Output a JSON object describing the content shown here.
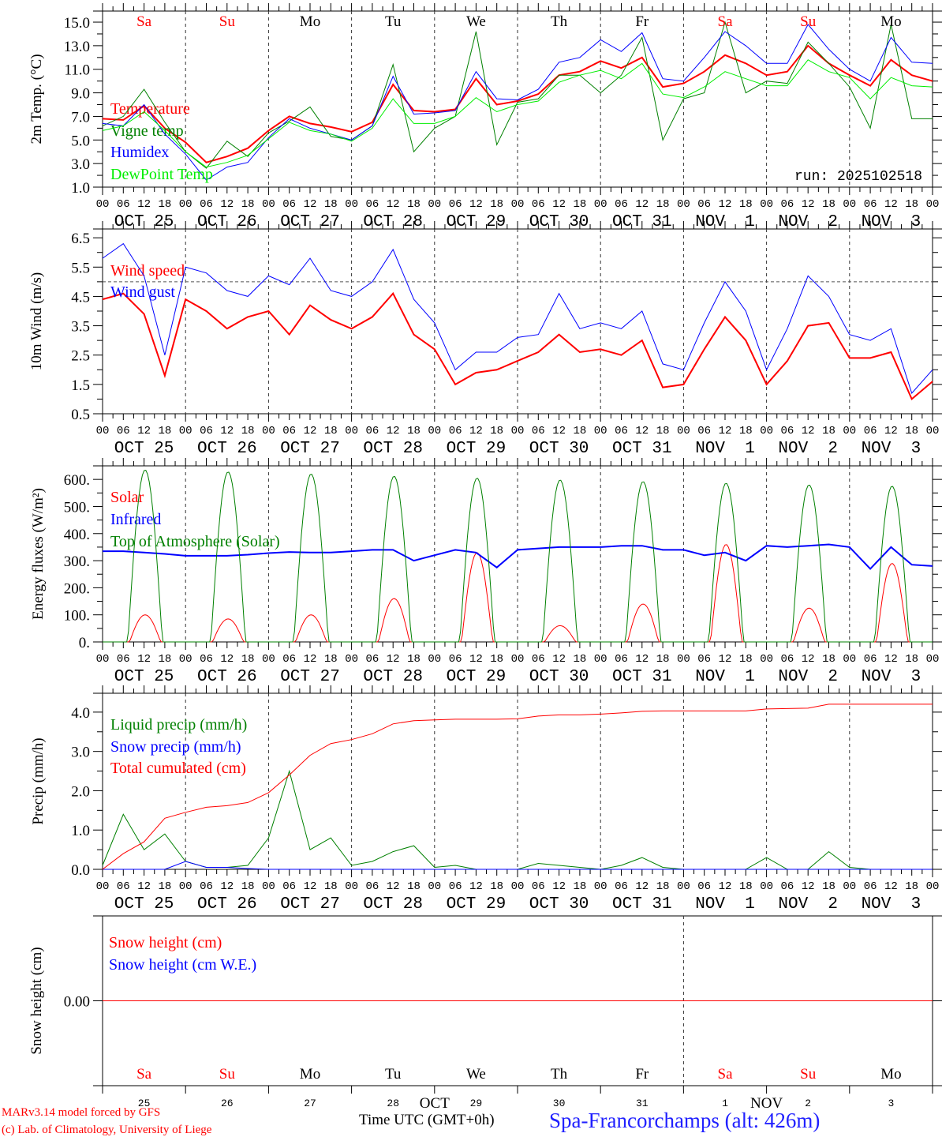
{
  "run_label": "run: 2025102518",
  "footer": {
    "model": "MARv3.14 model forced by GFS",
    "credit": "(c) Lab. of Climatology, University of Liege",
    "time_label": "Time UTC (GMT+0h)",
    "station": "Spa-Francorchamps (alt: 426m)",
    "month_oct": "OCT",
    "month_nov": "NOV"
  },
  "weekdays": [
    "Sa",
    "Su",
    "Mo",
    "Tu",
    "We",
    "Th",
    "Fr",
    "Sa",
    "Su",
    "Mo"
  ],
  "weekend_flags": [
    true,
    true,
    false,
    false,
    false,
    false,
    false,
    true,
    true,
    false
  ],
  "dates": [
    "OCT 25",
    "OCT 26",
    "OCT 27",
    "OCT 28",
    "OCT 29",
    "OCT 30",
    "OCT 31",
    "NOV  1",
    "NOV  2",
    "NOV  3"
  ],
  "day_numbers": [
    "25",
    "26",
    "27",
    "28",
    "29",
    "30",
    "31",
    "1",
    "2",
    "3"
  ],
  "hour_labels": [
    "00",
    "06",
    "12",
    "18"
  ],
  "colors": {
    "red": "#ff0000",
    "blue": "#0000ff",
    "green": "#008000",
    "lightgreen": "#00ee00",
    "weekend": "#ff0000",
    "station": "#2020ff"
  },
  "chart_data": [
    {
      "type": "line",
      "ylabel": "2m Temp. (°C)",
      "ylim": [
        1.0,
        15.94
      ],
      "yticks": [
        "1.0",
        "3.0",
        "5.0",
        "7.0",
        "9.0",
        "11.0",
        "13.0",
        "15.0"
      ],
      "x_step_hours": 6,
      "series": [
        {
          "name": "Temperature",
          "color": "#ff0000",
          "width": 2,
          "values": [
            6.8,
            6.7,
            7.9,
            6.0,
            4.8,
            3.1,
            3.6,
            4.3,
            5.8,
            7.0,
            6.4,
            6.1,
            5.7,
            6.5,
            9.7,
            7.5,
            7.4,
            7.6,
            10.2,
            8.0,
            8.3,
            8.9,
            10.5,
            10.8,
            11.7,
            11.1,
            12.0,
            9.5,
            9.8,
            10.8,
            12.2,
            11.5,
            10.5,
            10.8,
            13.0,
            11.5,
            10.5,
            9.6,
            11.8,
            10.5,
            10.0
          ]
        },
        {
          "name": "Vigne temp",
          "color": "#008000",
          "width": 1,
          "values": [
            6.2,
            7.0,
            9.3,
            6.5,
            4.0,
            2.6,
            4.9,
            3.6,
            5.6,
            6.6,
            7.8,
            5.3,
            5.0,
            6.2,
            11.4,
            4.0,
            6.0,
            7.0,
            14.2,
            4.6,
            8.2,
            8.5,
            10.5,
            10.5,
            9.0,
            10.5,
            13.7,
            5.0,
            8.5,
            9.0,
            15.0,
            9.0,
            10.0,
            9.8,
            13.3,
            11.5,
            9.5,
            6.0,
            14.8,
            6.8,
            6.8
          ]
        },
        {
          "name": "Humidex",
          "color": "#0000ff",
          "width": 1,
          "values": [
            6.4,
            6.2,
            8.0,
            5.5,
            3.8,
            1.6,
            2.7,
            3.1,
            5.2,
            6.8,
            6.0,
            5.5,
            5.0,
            6.2,
            10.4,
            7.2,
            7.3,
            7.5,
            10.8,
            8.5,
            8.4,
            9.3,
            11.6,
            12.0,
            13.5,
            12.5,
            14.1,
            10.2,
            10.0,
            12.0,
            14.2,
            13.0,
            11.5,
            11.5,
            14.8,
            12.7,
            11.0,
            10.0,
            13.7,
            11.6,
            11.5
          ]
        },
        {
          "name": "DewPoint Temp",
          "color": "#00ee00",
          "width": 1,
          "values": [
            5.8,
            6.2,
            7.4,
            5.8,
            4.0,
            2.7,
            3.1,
            3.7,
            5.1,
            6.5,
            5.8,
            5.5,
            4.9,
            6.0,
            8.5,
            6.4,
            6.4,
            7.0,
            8.6,
            7.4,
            8.0,
            8.3,
            9.9,
            10.5,
            10.9,
            10.2,
            11.5,
            8.9,
            8.6,
            9.5,
            10.8,
            10.2,
            9.6,
            9.6,
            11.8,
            10.8,
            10.3,
            8.5,
            10.3,
            9.6,
            9.5
          ]
        }
      ]
    },
    {
      "type": "line",
      "ylabel": "10m Wind (m/s)",
      "ylim": [
        0.5,
        6.8
      ],
      "yticks": [
        "0.5",
        "1.5",
        "2.5",
        "3.5",
        "4.5",
        "5.5",
        "6.5"
      ],
      "reference_line": 5.0,
      "x_step_hours": 6,
      "series": [
        {
          "name": "Wind speed",
          "color": "#ff0000",
          "width": 2,
          "values": [
            4.4,
            4.6,
            3.9,
            1.8,
            4.4,
            4.0,
            3.4,
            3.8,
            4.0,
            3.2,
            4.2,
            3.7,
            3.4,
            3.8,
            4.6,
            3.2,
            2.7,
            1.5,
            1.9,
            2.0,
            2.3,
            2.6,
            3.2,
            2.6,
            2.7,
            2.5,
            3.0,
            1.4,
            1.5,
            2.7,
            3.8,
            3.0,
            1.5,
            2.3,
            3.5,
            3.6,
            2.4,
            2.4,
            2.6,
            1.0,
            1.6
          ]
        },
        {
          "name": "Wind gust",
          "color": "#0000ff",
          "width": 1,
          "values": [
            5.8,
            6.3,
            5.2,
            2.5,
            5.5,
            5.3,
            4.7,
            4.5,
            5.2,
            4.9,
            5.8,
            4.7,
            4.5,
            5.0,
            6.1,
            4.4,
            3.6,
            2.0,
            2.6,
            2.6,
            3.1,
            3.2,
            4.6,
            3.4,
            3.6,
            3.4,
            4.0,
            2.2,
            2.0,
            3.6,
            5.0,
            4.0,
            2.0,
            3.4,
            5.2,
            4.5,
            3.2,
            3.0,
            3.4,
            1.2,
            2.0
          ]
        }
      ]
    },
    {
      "type": "line",
      "ylabel": "Energy fluxes (W/m²)",
      "ylim": [
        0,
        650
      ],
      "yticks": [
        "0.",
        "100.",
        "200.",
        "300.",
        "400.",
        "500.",
        "600."
      ],
      "series": [
        {
          "name": "Solar",
          "color": "#ff0000",
          "width": 1,
          "daily_peaks": [
            100,
            85,
            100,
            160,
            330,
            60,
            140,
            360,
            125,
            290
          ]
        },
        {
          "name": "Infrared",
          "color": "#0000ff",
          "width": 2,
          "x_step_hours": 6,
          "values": [
            335,
            335,
            330,
            325,
            318,
            318,
            318,
            322,
            328,
            332,
            330,
            330,
            335,
            340,
            340,
            300,
            320,
            340,
            330,
            275,
            340,
            345,
            350,
            350,
            350,
            355,
            355,
            340,
            340,
            320,
            330,
            300,
            355,
            350,
            355,
            360,
            350,
            270,
            350,
            285,
            280
          ]
        },
        {
          "name": "Top of Atmosphere (Solar)",
          "color": "#008000",
          "width": 1,
          "daily_peaks": [
            635,
            628,
            620,
            612,
            605,
            598,
            592,
            586,
            580,
            575
          ]
        }
      ]
    },
    {
      "type": "line",
      "ylabel": "Precip (mm/h)",
      "ylim": [
        0,
        4.48
      ],
      "yticks": [
        "0.0",
        "1.0",
        "2.0",
        "3.0",
        "4.0"
      ],
      "x_step_hours": 6,
      "series": [
        {
          "name": "Liquid precip (mm/h)",
          "color": "#008000",
          "width": 1,
          "values": [
            0.1,
            1.4,
            0.5,
            0.9,
            0.2,
            0.05,
            0.05,
            0.1,
            0.8,
            2.5,
            0.5,
            0.8,
            0.1,
            0.2,
            0.45,
            0.6,
            0.05,
            0.1,
            0,
            0,
            0,
            0.15,
            0.1,
            0.05,
            0,
            0.1,
            0.3,
            0.05,
            0,
            0,
            0,
            0,
            0.3,
            0,
            0,
            0.45,
            0.05,
            0,
            0,
            0,
            0
          ]
        },
        {
          "name": "Snow precip (mm/h)",
          "color": "#0000ff",
          "width": 1,
          "values": [
            0,
            0,
            0,
            0,
            0.2,
            0.05,
            0.05,
            0.02,
            0,
            0,
            0,
            0,
            0,
            0,
            0,
            0,
            0,
            0,
            0,
            0,
            0,
            0,
            0,
            0,
            0,
            0,
            0,
            0,
            0,
            0,
            0,
            0,
            0,
            0,
            0,
            0,
            0,
            0,
            0,
            0,
            0
          ]
        },
        {
          "name": "Total cumulated (cm)",
          "color": "#ff0000",
          "width": 1,
          "values": [
            0,
            0.4,
            0.7,
            1.3,
            1.45,
            1.58,
            1.62,
            1.7,
            1.95,
            2.4,
            2.9,
            3.2,
            3.3,
            3.45,
            3.7,
            3.78,
            3.8,
            3.82,
            3.82,
            3.82,
            3.83,
            3.9,
            3.93,
            3.93,
            3.95,
            3.98,
            4.02,
            4.03,
            4.03,
            4.03,
            4.03,
            4.03,
            4.08,
            4.09,
            4.1,
            4.2,
            4.2,
            4.2,
            4.2,
            4.2,
            4.2
          ]
        }
      ]
    },
    {
      "type": "line",
      "ylabel": "Snow height (cm)",
      "ylim": [
        -2.2,
        2.2
      ],
      "yticks": [
        "0.00"
      ],
      "x_step_hours": 6,
      "series": [
        {
          "name": "Snow height (cm)",
          "color": "#ff0000",
          "width": 1,
          "values": [
            0,
            0,
            0,
            0,
            0,
            0,
            0,
            0,
            0,
            0,
            0,
            0,
            0,
            0,
            0,
            0,
            0,
            0,
            0,
            0,
            0,
            0,
            0,
            0,
            0,
            0,
            0,
            0,
            0,
            0,
            0,
            0,
            0,
            0,
            0,
            0,
            0,
            0,
            0,
            0,
            0
          ]
        },
        {
          "name": "Snow height (cm W.E.)",
          "color": "#0000ff",
          "width": 0,
          "values": []
        }
      ]
    }
  ]
}
